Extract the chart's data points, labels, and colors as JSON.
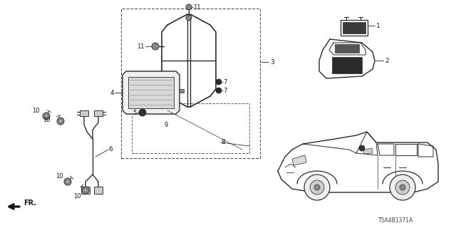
{
  "background_color": "#ffffff",
  "diagram_code": "T5A4B1371A",
  "line_color": "#2a2a2a",
  "text_color": "#1a1a1a",
  "fig_width": 6.4,
  "fig_height": 3.2,
  "dpi": 100
}
